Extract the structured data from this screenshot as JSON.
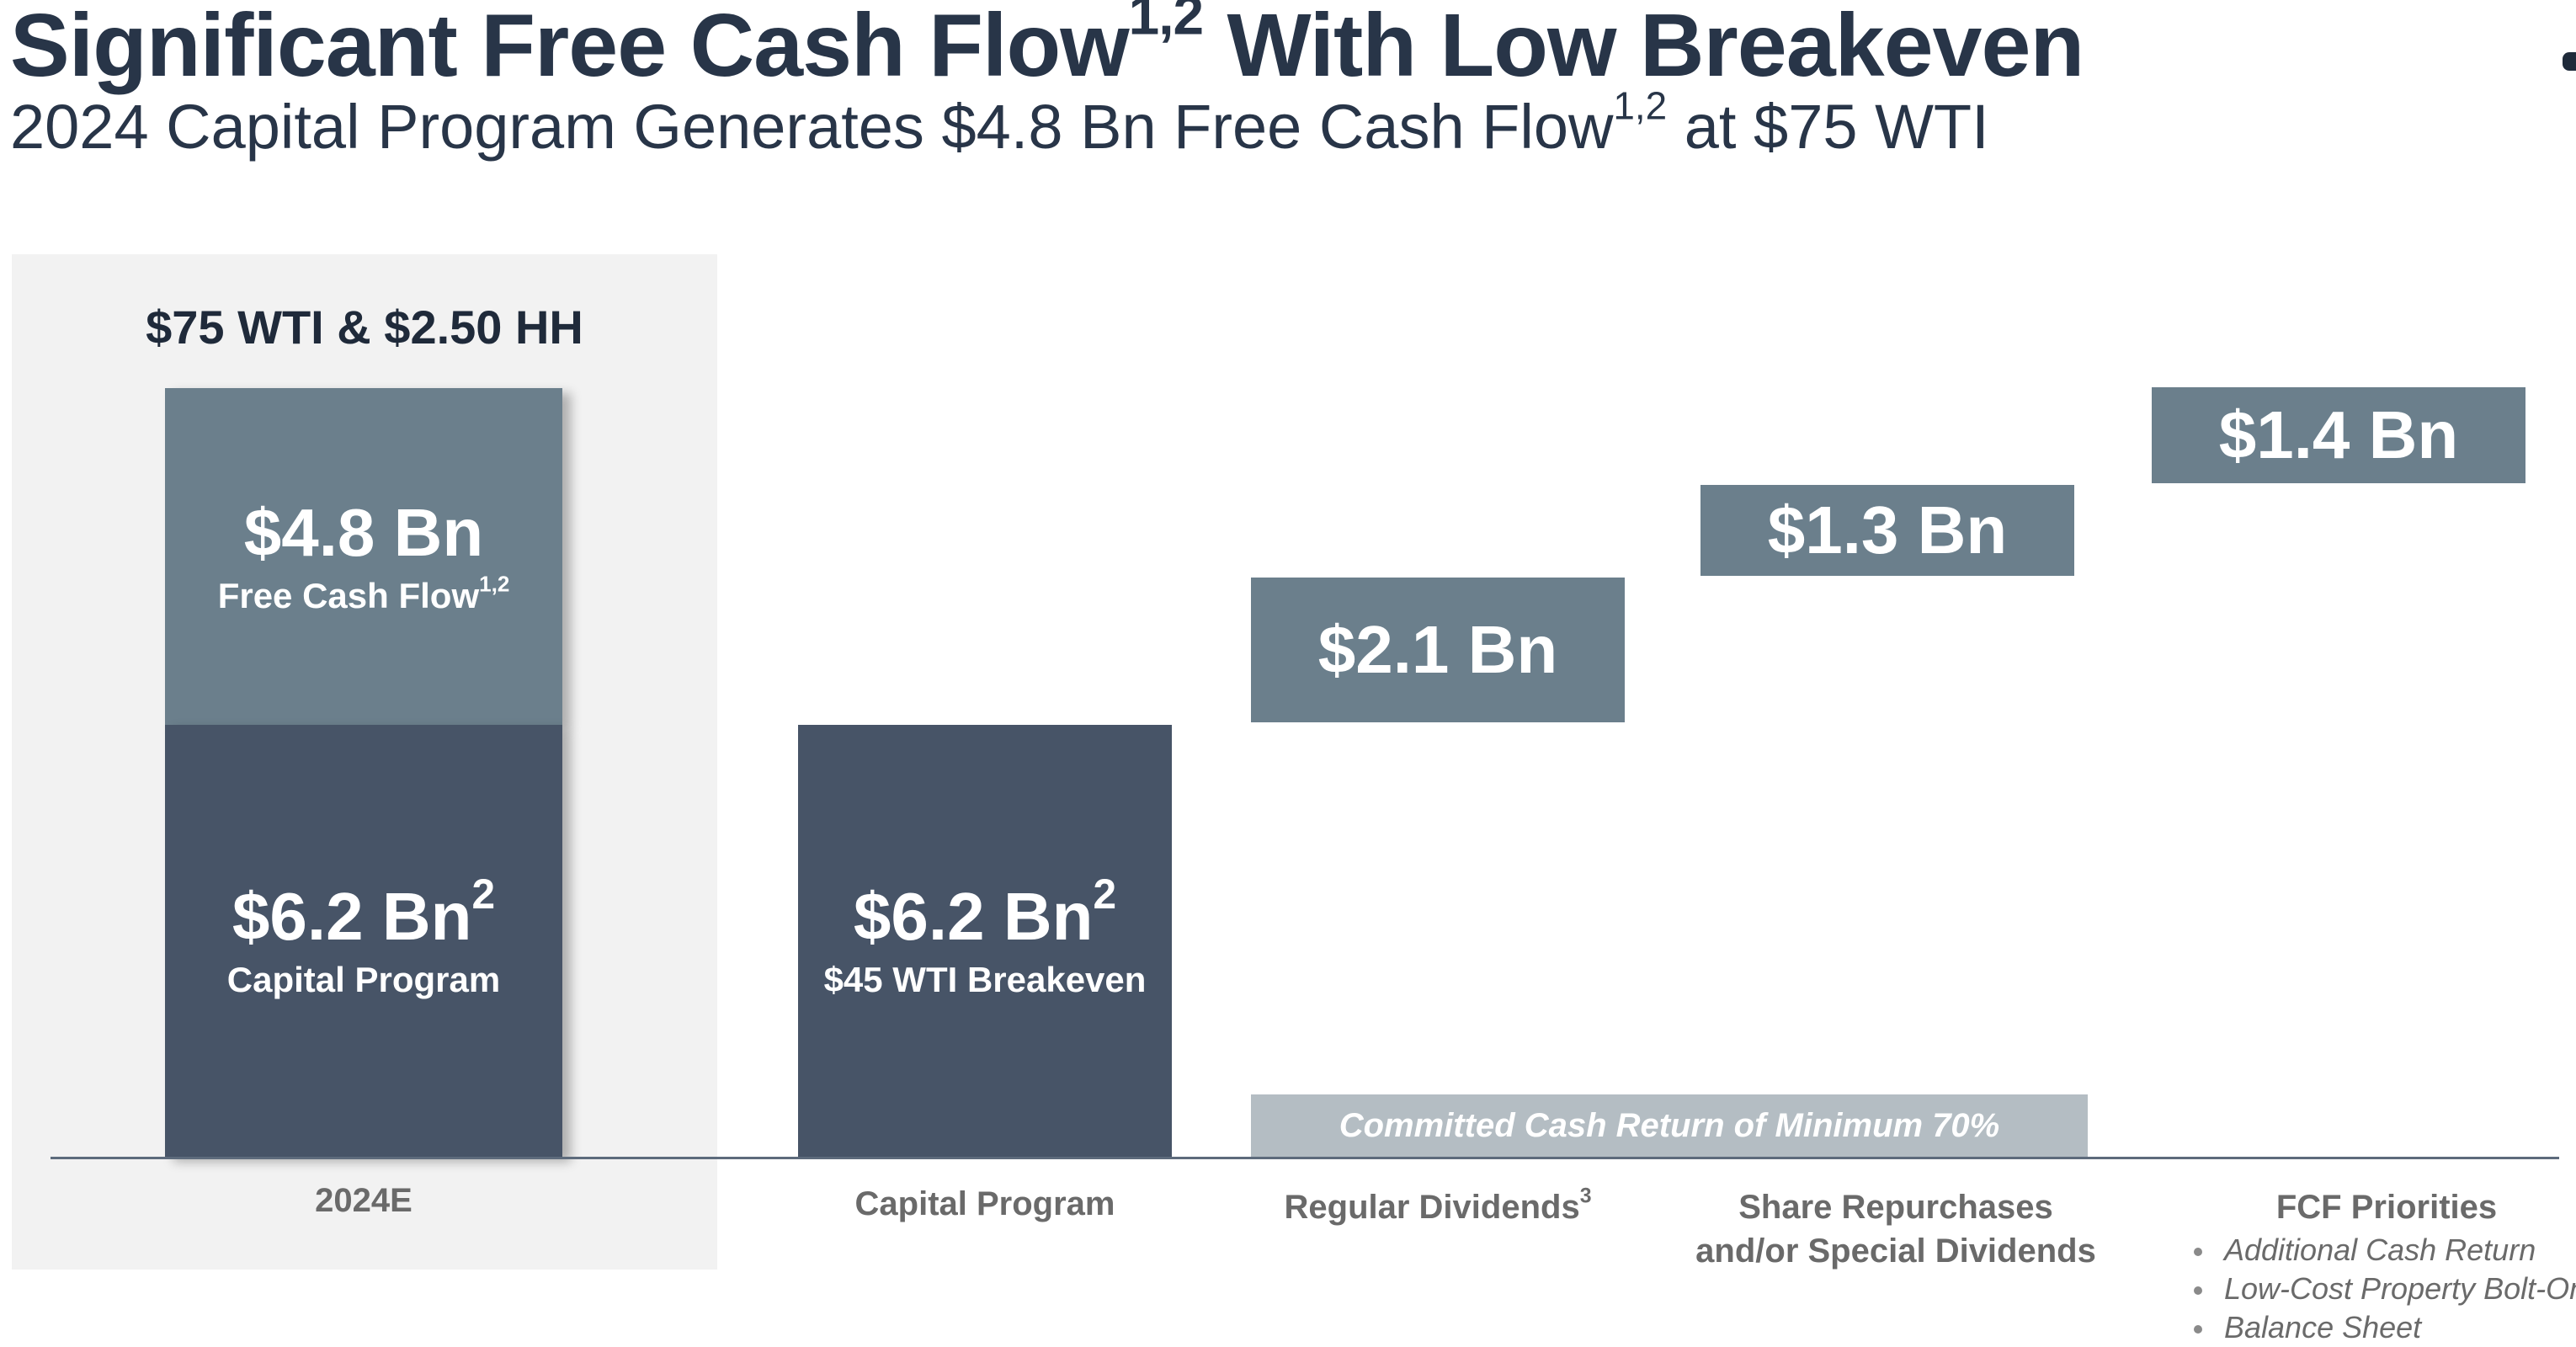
{
  "header": {
    "title": "Significant Free Cash Flow",
    "title_sup": "1,2",
    "title_tail": " With Low Breakeven",
    "subtitle_pre": "2024 Capital Program Generates $4.8 Bn Free Cash Flow",
    "subtitle_sup": "1,2",
    "subtitle_post": " at $75 WTI"
  },
  "panel": {
    "heading": "$75 WTI & $2.50 HH"
  },
  "bars": {
    "fcf": {
      "value": "$4.8 Bn",
      "label": "Free Cash Flow",
      "label_sup": "1,2"
    },
    "capital_left": {
      "value": "$6.2 Bn",
      "value_sup": "2",
      "label": "Capital Program"
    },
    "capital_program": {
      "value": "$6.2 Bn",
      "value_sup": "2",
      "label": "$45 WTI Breakeven"
    },
    "regular_dividends": {
      "value": "$2.1 Bn"
    },
    "share_repurchases": {
      "value": "$1.3 Bn"
    },
    "fcf_priorities": {
      "value": "$1.4 Bn"
    }
  },
  "committed_label": "Committed Cash Return of Minimum 70%",
  "x_labels": {
    "2024e": "2024E",
    "capital_program": "Capital Program",
    "regular_dividends": "Regular Dividends",
    "regular_dividends_sup": "3",
    "share_repurchases_line1": "Share Repurchases",
    "share_repurchases_line2": "and/or Special Dividends"
  },
  "priorities": {
    "title": "FCF Priorities",
    "items": [
      "Additional Cash Return",
      "Low-Cost Property Bolt-Ons",
      "Balance Sheet"
    ]
  },
  "chart_data": {
    "type": "bar",
    "title": "Significant Free Cash Flow1,2 With Low Breakeven",
    "subtitle": "2024 Capital Program Generates $4.8 Bn Free Cash Flow1,2 at $75 WTI",
    "units": "$ Bn",
    "categories": [
      "2024E",
      "Capital Program",
      "Regular Dividends3",
      "Share Repurchases and/or Special Dividends",
      "FCF Priorities"
    ],
    "stacked_2024E": [
      {
        "name": "Capital Program",
        "value": 6.2
      },
      {
        "name": "Free Cash Flow1,2",
        "value": 4.8
      }
    ],
    "waterfall": [
      {
        "category": "Capital Program",
        "value": 6.2,
        "note": "$45 WTI Breakeven"
      },
      {
        "category": "Regular Dividends3",
        "value": 2.1
      },
      {
        "category": "Share Repurchases and/or Special Dividends",
        "value": 1.3
      },
      {
        "category": "FCF Priorities",
        "value": 1.4
      }
    ],
    "annotation": "Committed Cash Return of Minimum 70%",
    "colors": {
      "capital": "#475467",
      "cash_flow": "#6b7f8c",
      "committed": "#b4bdc3",
      "panel": "#f2f2f2"
    }
  }
}
